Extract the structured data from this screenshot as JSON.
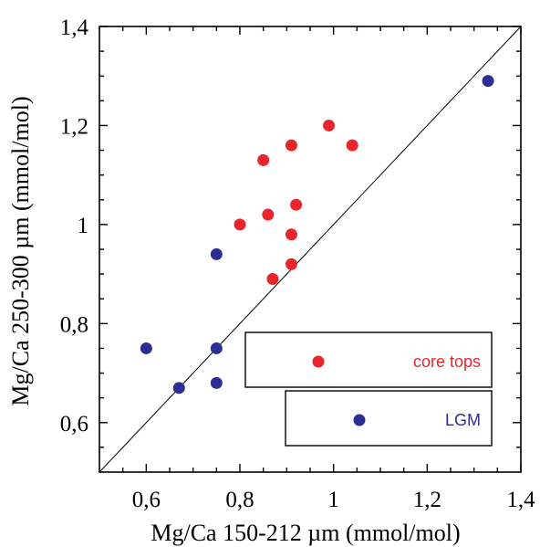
{
  "chart_data": {
    "type": "scatter",
    "xlabel": "Mg/Ca 150-212 µm (mmol/mol)",
    "ylabel": "Mg/Ca 250-300 µm (mmol/mol)",
    "xlim": [
      0.5,
      1.4
    ],
    "ylim": [
      0.5,
      1.4
    ],
    "x_ticks": [
      0.6,
      0.8,
      1.0,
      1.2,
      1.4
    ],
    "y_ticks": [
      0.6,
      0.8,
      1.0,
      1.2,
      1.4
    ],
    "x_tick_labels": [
      "0,6",
      "0,8",
      "1",
      "1,2",
      "1,4"
    ],
    "y_tick_labels": [
      "0,6",
      "0,8",
      "1",
      "1,2",
      "1,4"
    ],
    "grid": false,
    "reference_line": "1:1",
    "legend_position": "bottom-right",
    "series": [
      {
        "name": "core tops",
        "color": "#e8262b",
        "points": [
          {
            "x": 0.99,
            "y": 1.2
          },
          {
            "x": 0.91,
            "y": 1.16
          },
          {
            "x": 1.04,
            "y": 1.16
          },
          {
            "x": 0.85,
            "y": 1.13
          },
          {
            "x": 0.92,
            "y": 1.04
          },
          {
            "x": 0.86,
            "y": 1.02
          },
          {
            "x": 0.8,
            "y": 1.0
          },
          {
            "x": 0.91,
            "y": 0.98
          },
          {
            "x": 0.91,
            "y": 0.92
          },
          {
            "x": 0.87,
            "y": 0.89
          }
        ]
      },
      {
        "name": "LGM",
        "color": "#2b2f94",
        "points": [
          {
            "x": 1.33,
            "y": 1.29
          },
          {
            "x": 0.75,
            "y": 0.94
          },
          {
            "x": 0.6,
            "y": 0.75
          },
          {
            "x": 0.75,
            "y": 0.75
          },
          {
            "x": 0.67,
            "y": 0.67
          },
          {
            "x": 0.75,
            "y": 0.68
          }
        ]
      }
    ]
  }
}
